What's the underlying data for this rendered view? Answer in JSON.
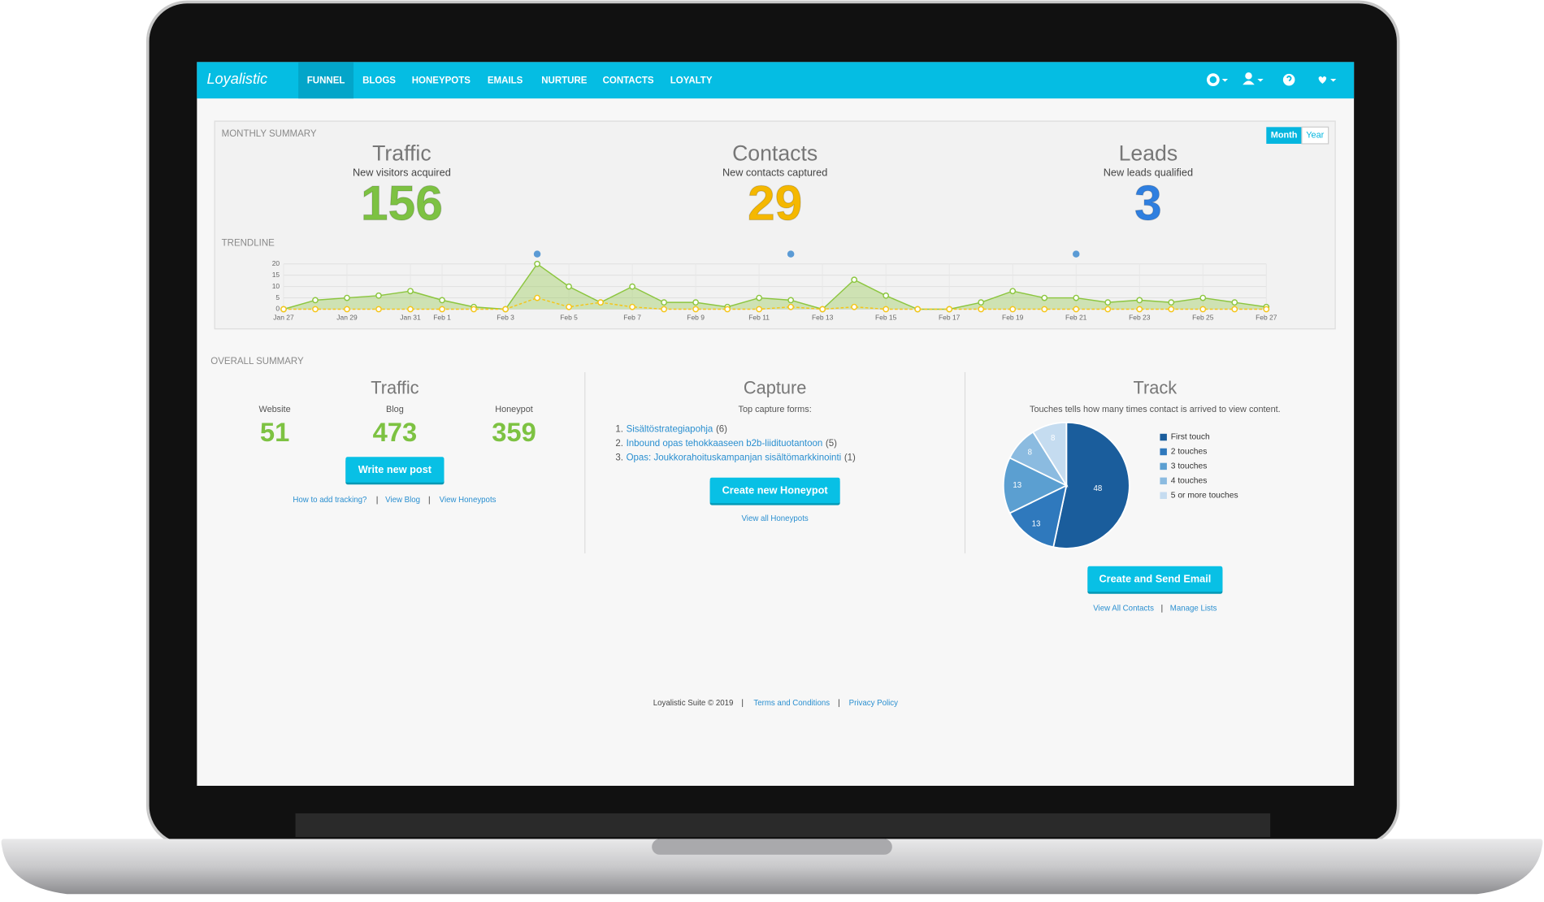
{
  "brand": "Loyalistic",
  "nav": [
    "FUNNEL",
    "BLOGS",
    "HONEYPOTS",
    "EMAILS",
    "NURTURE",
    "CONTACTS",
    "LOYALTY"
  ],
  "monthly_summary": {
    "title": "MONTHLY SUMMARY",
    "toggle": [
      "Month",
      "Year"
    ],
    "stats": [
      {
        "title": "Traffic",
        "subtitle": "New visitors acquired",
        "value": 156,
        "color": "#7dc242"
      },
      {
        "title": "Contacts",
        "subtitle": "New contacts captured",
        "value": 29,
        "color": "#f5b800"
      },
      {
        "title": "Leads",
        "subtitle": "New leads qualified",
        "value": 3,
        "color": "#2f7fe0"
      }
    ]
  },
  "chart_data": [
    {
      "type": "line",
      "title": "TRENDLINE",
      "categories": [
        "Jan 27",
        null,
        "Jan 29",
        null,
        "Jan 31",
        "Feb 1",
        null,
        "Feb 3",
        null,
        "Feb 5",
        null,
        "Feb 7",
        null,
        "Feb 9",
        null,
        "Feb 11",
        null,
        "Feb 13",
        null,
        "Feb 15",
        null,
        "Feb 17",
        null,
        "Feb 19",
        null,
        "Feb 21",
        null,
        "Feb 23",
        null,
        "Feb 25",
        null,
        "Feb 27"
      ],
      "series": [
        {
          "color": "#8cc63f",
          "values": [
            0,
            4,
            5,
            6,
            8,
            4,
            1,
            0,
            20,
            10,
            3,
            10,
            3,
            3,
            1,
            5,
            4,
            0,
            13,
            6,
            0,
            0,
            3,
            8,
            5,
            5,
            3,
            4,
            3,
            5,
            3,
            1
          ]
        },
        {
          "color": "#f5c518",
          "values": [
            0,
            0,
            0,
            0,
            0,
            0,
            0,
            0,
            5,
            1,
            3,
            1,
            0,
            0,
            0,
            0,
            1,
            0,
            1,
            0,
            0,
            0,
            0,
            0,
            0,
            0,
            0,
            0,
            0,
            0,
            0,
            0
          ]
        },
        {
          "color": "#5b9bd5",
          "axis": "y2",
          "values": [
            null,
            null,
            null,
            null,
            null,
            null,
            null,
            null,
            1,
            null,
            null,
            null,
            null,
            null,
            null,
            null,
            1,
            null,
            null,
            null,
            null,
            null,
            null,
            null,
            null,
            1,
            null,
            null,
            null,
            null,
            null,
            null
          ]
        }
      ],
      "ylim": [
        0,
        20
      ],
      "yticks": [
        0,
        5,
        10,
        15,
        20
      ],
      "y2lim": [
        0,
        1
      ],
      "grid": true
    },
    {
      "type": "pie",
      "title": "Track",
      "subtitle": "Touches tells how many times contact is arrived to view content.",
      "categories": [
        "First touch",
        "2 touches",
        "3 touches",
        "4 touches",
        "5 or more touches"
      ],
      "values": [
        48,
        13,
        13,
        8,
        8
      ],
      "colors": [
        "#1a5d9c",
        "#2f79bd",
        "#5b9fd1",
        "#8bbbe0",
        "#c5dcf0"
      ],
      "legend": "right"
    }
  ],
  "overall_summary": {
    "title": "OVERALL SUMMARY",
    "traffic": {
      "title": "Traffic",
      "items": [
        {
          "label": "Website",
          "value": 51
        },
        {
          "label": "Blog",
          "value": 473
        },
        {
          "label": "Honeypot",
          "value": 359
        }
      ],
      "button": "Write new post",
      "links": [
        "How to add tracking?",
        "View Blog",
        "View Honeypots"
      ]
    },
    "capture": {
      "title": "Capture",
      "subtitle": "Top capture forms:",
      "forms": [
        {
          "num": "1.",
          "name": "Sisältöstrategiapohja",
          "count": "(6)"
        },
        {
          "num": "2.",
          "name": "Inbound opas tehokkaaseen b2b-liiditu­otantoon",
          "count": "(5)"
        },
        {
          "num": "3.",
          "name": "Opas: Joukkorahoituskampanjan sisältömarkkinointi",
          "count": "(1)"
        }
      ],
      "button": "Create new Honeypot",
      "link": "View all Honeypots"
    },
    "track": {
      "button": "Create and Send Email",
      "links": [
        "View All Contacts",
        "Manage Lists"
      ]
    }
  },
  "footer": {
    "copyright": "Loyalistic Suite © 2019",
    "links": [
      "Terms and Conditions",
      "Privacy Policy"
    ]
  }
}
